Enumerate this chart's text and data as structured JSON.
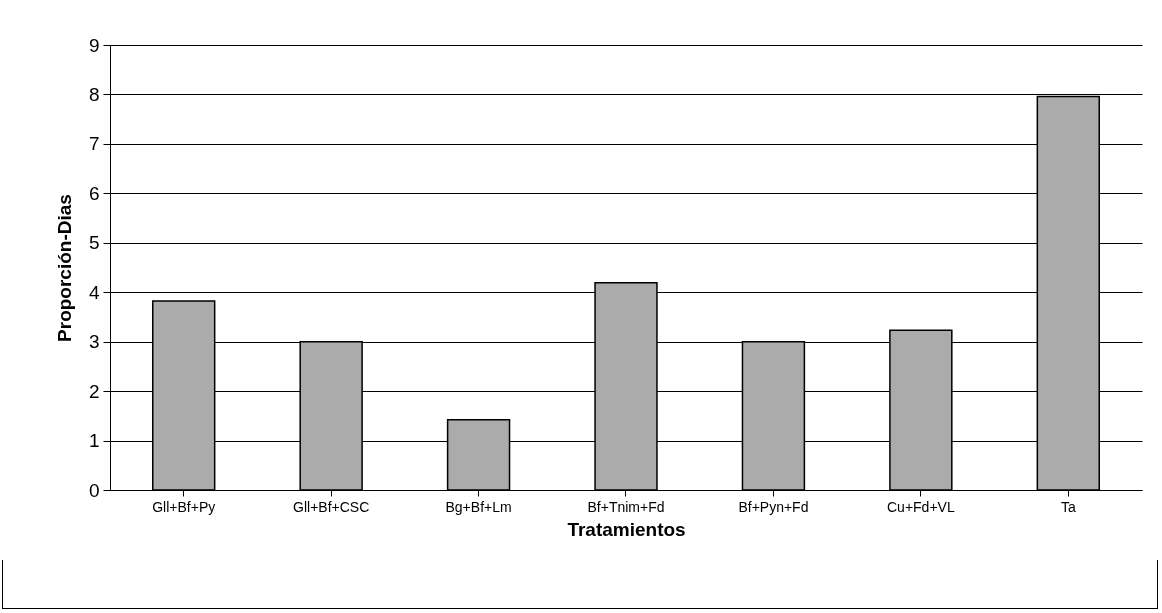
{
  "chart_data": {
    "type": "bar",
    "xlabel": "Tratamientos",
    "ylabel": "Proporción-Dias",
    "categories": [
      "Gll+Bf+Py",
      "Gll+Bf+CSC",
      "Bg+Bf+Lm",
      "Bf+Tnim+Fd",
      "Bf+Pyn+Fd",
      "Cu+Fd+VL",
      "Ta"
    ],
    "values": [
      3.82,
      3.0,
      1.42,
      4.19,
      3.0,
      3.23,
      7.96
    ],
    "color": "#ababab",
    "ylim": [
      0,
      9
    ],
    "yticks": [
      0,
      1,
      2,
      3,
      4,
      5,
      6,
      7,
      8,
      9
    ],
    "grid": "y"
  }
}
